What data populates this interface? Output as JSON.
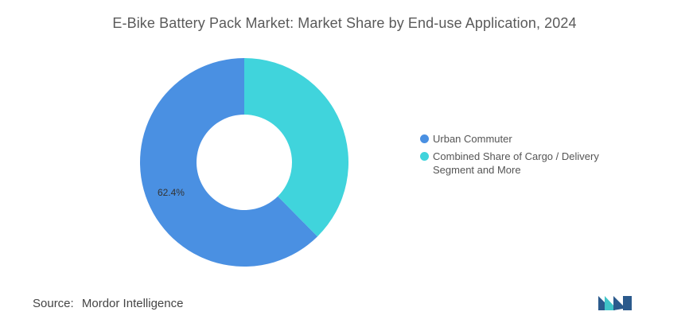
{
  "title": "E-Bike Battery Pack Market: Market Share by End-use Application, 2024",
  "chart_data": {
    "type": "pie",
    "variant": "donut",
    "series": [
      {
        "name": "Urban Commuter",
        "value": 62.4,
        "color": "#4a90e2",
        "label": "62.4%"
      },
      {
        "name": "Combined Share of Cargo / Delivery Segment and More",
        "value": 37.6,
        "color": "#40d4dc",
        "label": ""
      }
    ],
    "legend_position": "right"
  },
  "legend": [
    {
      "label": "Urban Commuter",
      "color": "#4a90e2"
    },
    {
      "label": "Combined Share of Cargo / Delivery Segment and More",
      "color": "#40d4dc"
    }
  ],
  "source": {
    "label": "Source:",
    "value": "Mordor Intelligence"
  },
  "logo": {
    "icon": "mordor-intelligence-logo",
    "colors": [
      "#2b5a8c",
      "#40c4c8"
    ]
  }
}
